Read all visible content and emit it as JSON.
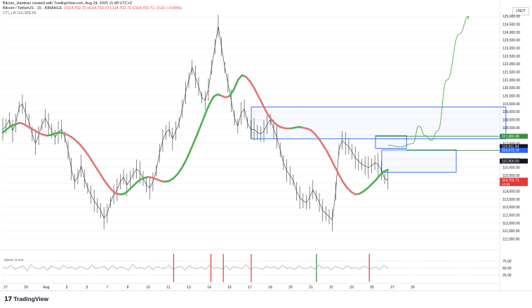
{
  "header": {
    "author_line": "Bitcoin_Hamkari created with TradingView.com, Aug 24, 2025 11:48 UTC+3",
    "symbol": "Bitcoin / TetherUS · 15 · BINANCE",
    "ohlc": "O114,702.72 H114,702.72 L114,702.71 C114,702.71 −0.01 (−0.00%)",
    "indicator": "CTI_LB  115,309.25"
  },
  "currency": "USDT",
  "brand": "TradingView",
  "rsi_label": "RB/20 14 RSI",
  "chart_data": {
    "type": "line",
    "title": "Bitcoin / TetherUS · 15 · BINANCE",
    "y_axis_ticks": [
      111000,
      111500,
      112000,
      112500,
      113000,
      113500,
      114000,
      114500,
      115000,
      115500,
      116000,
      116500,
      117000,
      117500,
      118000,
      118500,
      119000,
      119500,
      120000,
      120500,
      121000,
      121500,
      122000,
      122500,
      123000,
      123500,
      124000,
      124500,
      125000
    ],
    "ylim": [
      110500,
      125500
    ],
    "x_axis_labels": [
      "27",
      "29",
      "Aug",
      "3",
      "5",
      "7",
      "8",
      "10",
      "11",
      "13",
      "14",
      "15",
      "17",
      "18",
      "20",
      "21",
      "22",
      "23",
      "25",
      "27",
      "29"
    ],
    "price_tags": [
      {
        "label": "117,462.48",
        "price": 117462,
        "color": "#388e3c"
      },
      {
        "label": "116,811.94",
        "price": 116812,
        "color": "#131722"
      },
      {
        "label": "116,573.70",
        "price": 116574,
        "color": "#2962ff"
      },
      {
        "label": "115,900.00",
        "price": 115900,
        "color": "#131722"
      },
      {
        "label": "114,702.71",
        "price": 114703,
        "color": "#e53935"
      }
    ],
    "tag_sub_label": "13:26",
    "price_series": [
      117900,
      118100,
      118500,
      117800,
      118300,
      119300,
      119500,
      118900,
      118400,
      117600,
      117000,
      117500,
      118200,
      118600,
      118200,
      117800,
      117400,
      117700,
      117900,
      117400,
      116600,
      115400,
      114600,
      114900,
      115600,
      114800,
      114200,
      113800,
      113400,
      113100,
      112800,
      112300,
      112600,
      113300,
      113800,
      114100,
      114600,
      114900,
      114400,
      114700,
      115100,
      115400,
      115200,
      114800,
      114400,
      114200,
      114600,
      115300,
      116400,
      117200,
      117700,
      117900,
      117300,
      117800,
      118300,
      119200,
      120200,
      121000,
      121800,
      121200,
      120600,
      119900,
      119700,
      120400,
      121800,
      123100,
      124400,
      123100,
      121800,
      120800,
      119700,
      118600,
      118100,
      118900,
      119200,
      118300,
      117900,
      117900,
      117700,
      117600,
      117800,
      118200,
      118500,
      117900,
      117400,
      116600,
      115800,
      115300,
      115000,
      114700,
      114000,
      113600,
      113400,
      113300,
      113600,
      114100,
      113700,
      113300,
      112800,
      112600,
      112400,
      112200,
      114000,
      116600,
      117200,
      117000,
      116800,
      116500,
      116100,
      115900,
      115700,
      115600,
      115500,
      115600,
      115800,
      115700,
      115300,
      114800,
      114700
    ],
    "smooth_series": [
      117700,
      117900,
      118100,
      118200,
      118300,
      118250,
      118100,
      117950,
      117800,
      117650,
      117550,
      117500,
      117550,
      117650,
      117700,
      117650,
      117550,
      117400,
      117200,
      116950,
      116650,
      116300,
      115900,
      115500,
      115100,
      114700,
      114350,
      114050,
      113850,
      113800,
      113850,
      114050,
      114300,
      114550,
      114750,
      114850,
      114900,
      114850,
      114750,
      114650,
      114600,
      114650,
      114800,
      115050,
      115400,
      115850,
      116400,
      117000,
      117600,
      118250,
      118900,
      119500,
      119950,
      120100,
      120000,
      119900,
      120000,
      120400,
      121000,
      121300,
      121200,
      120900,
      120500,
      120000,
      119500,
      119000,
      118600,
      118300,
      118100,
      118000,
      117950,
      117950,
      118000,
      118050,
      118000,
      117950,
      117850,
      117600,
      117300,
      116900,
      116500,
      116000,
      115500,
      115000,
      114550,
      114200,
      113950,
      113800,
      113850,
      114000,
      114200,
      114450,
      114700,
      115000,
      115250,
      115350
    ],
    "smooth_series_colors": [
      "#4caf50",
      "#4caf50",
      "#4caf50",
      "#4caf50",
      "#e57373",
      "#e57373",
      "#e57373",
      "#e57373",
      "#e57373",
      "#e57373",
      "#e57373",
      "#4caf50",
      "#4caf50",
      "#4caf50",
      "#4caf50",
      "#e57373",
      "#e57373",
      "#e57373",
      "#e57373",
      "#e57373",
      "#e57373",
      "#e57373",
      "#e57373",
      "#e57373",
      "#e57373",
      "#e57373",
      "#e57373",
      "#e57373",
      "#e57373",
      "#4caf50",
      "#4caf50",
      "#4caf50",
      "#4caf50",
      "#4caf50",
      "#4caf50",
      "#4caf50",
      "#e57373",
      "#e57373",
      "#e57373",
      "#e57373",
      "#4caf50",
      "#4caf50",
      "#4caf50",
      "#4caf50",
      "#4caf50",
      "#4caf50",
      "#4caf50",
      "#4caf50",
      "#4caf50",
      "#4caf50",
      "#4caf50",
      "#4caf50",
      "#4caf50",
      "#4caf50",
      "#e57373",
      "#e57373",
      "#4caf50",
      "#4caf50",
      "#4caf50",
      "#4caf50",
      "#e57373",
      "#e57373",
      "#e57373",
      "#e57373",
      "#e57373",
      "#e57373",
      "#e57373",
      "#e57373",
      "#e57373",
      "#e57373",
      "#e57373",
      "#4caf50",
      "#4caf50",
      "#4caf50",
      "#e57373",
      "#e57373",
      "#e57373",
      "#e57373",
      "#e57373",
      "#e57373",
      "#e57373",
      "#e57373",
      "#e57373",
      "#e57373",
      "#e57373",
      "#e57373",
      "#e57373",
      "#e57373",
      "#4caf50",
      "#4caf50",
      "#4caf50",
      "#4caf50",
      "#4caf50",
      "#4caf50",
      "#4caf50",
      "#4caf50"
    ],
    "rsi_ticks": [
      75,
      50,
      25
    ],
    "rsi_series": [
      55,
      48,
      60,
      45,
      52,
      58,
      40,
      62,
      50,
      47,
      55,
      42,
      58,
      51,
      46,
      60,
      49,
      53,
      44,
      57,
      50,
      45,
      61,
      48,
      52,
      56,
      43,
      59,
      47,
      54,
      50,
      41,
      63,
      49,
      52,
      46,
      58,
      44,
      55,
      50,
      48,
      60,
      45,
      53,
      57,
      42,
      59,
      50,
      47,
      55,
      44,
      61,
      49,
      52,
      46,
      58,
      43,
      56,
      51,
      48,
      62,
      45,
      53,
      50,
      44,
      57,
      49,
      55,
      46,
      60,
      48,
      52,
      43,
      58,
      50,
      47,
      56,
      45,
      61,
      49,
      53,
      44,
      57,
      50,
      46,
      59,
      48,
      52,
      45,
      58,
      51,
      47,
      55,
      44,
      60,
      49
    ],
    "rsi_markers": [
      {
        "x": 55,
        "color": "#e53935"
      },
      {
        "x": 67,
        "color": "#e53935"
      },
      {
        "x": 71,
        "color": "#e53935"
      },
      {
        "x": 80,
        "color": "#e53935"
      },
      {
        "x": 101,
        "color": "#388e3c"
      },
      {
        "x": 118,
        "color": "#e53935"
      }
    ],
    "zones": [
      {
        "x0": 80,
        "x1": 162,
        "y_top": 119300,
        "y_bot": 117300
      },
      {
        "x0": 120,
        "x1": 130,
        "y_top": 117500,
        "y_bot": 116700
      },
      {
        "x0": 122,
        "x1": 146,
        "y_top": 116600,
        "y_bot": 115200
      }
    ],
    "projection": [
      [
        124,
        116900
      ],
      [
        128,
        116800
      ],
      [
        132,
        117000
      ],
      [
        134,
        118100
      ],
      [
        136,
        117500
      ],
      [
        138,
        117200
      ],
      [
        140,
        117800
      ],
      [
        143,
        121000
      ],
      [
        147,
        123900
      ],
      [
        150,
        125000
      ]
    ],
    "horizontal_lines": [
      {
        "price": 117462,
        "x0": 120,
        "color": "#388e3c"
      },
      {
        "price": 116574,
        "x0": 130,
        "color": "#388e3c"
      }
    ]
  }
}
